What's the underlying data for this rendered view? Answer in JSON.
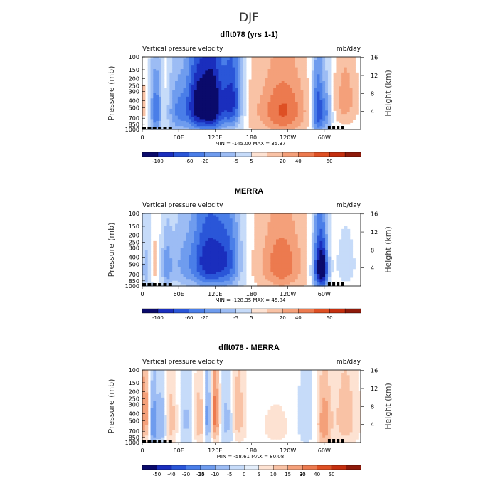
{
  "figure_title": "DJF",
  "chart_data": [
    {
      "type": "heatmap",
      "title": "dflt078 (yrs 1-1)",
      "left_label": "Vertical pressure velocity",
      "right_label": "mb/day",
      "ylabel": "Pressure (mb)",
      "y2label": "Height (km)",
      "stats": "MIN = -145.00   MAX =  35.37",
      "pressure_ticks": [
        100,
        150,
        200,
        250,
        300,
        400,
        500,
        700,
        850,
        1000
      ],
      "height_ticks": [
        4,
        8,
        12,
        16
      ],
      "lon_ticks": [
        "0",
        "60E",
        "120E",
        "180",
        "120W",
        "60W"
      ],
      "colorbar_labels": [
        "-100",
        "-60",
        "-20",
        "-5",
        "5",
        "20",
        "40",
        "60"
      ],
      "colorbar_colors": [
        "#0a0a6b",
        "#1a2ebd",
        "#2a56d8",
        "#4a7ee8",
        "#6f9cee",
        "#9cbcf4",
        "#c6dbf9",
        "#fde2d2",
        "#f9c2a5",
        "#f4a07a",
        "#ec7a4f",
        "#de5024",
        "#c42f0f",
        "#8e1a0a"
      ],
      "fields": [
        {
          "lon": 5,
          "p": 450,
          "sx": 5,
          "sy": 300,
          "a": 5
        },
        {
          "lon": 38,
          "p": 450,
          "sx": 4,
          "sy": 300,
          "a": 5
        },
        {
          "lon": 22,
          "p": 550,
          "sx": 7,
          "sy": 400,
          "a": -25
        },
        {
          "lon": 60,
          "p": 550,
          "sx": 15,
          "sy": 380,
          "a": -22
        },
        {
          "lon": 90,
          "p": 450,
          "sx": 12,
          "sy": 400,
          "a": -35
        },
        {
          "lon": 115,
          "p": 450,
          "sx": 13,
          "sy": 420,
          "a": -45
        },
        {
          "lon": 148,
          "p": 400,
          "sx": 13,
          "sy": 380,
          "a": -35
        },
        {
          "lon": 175,
          "p": 500,
          "sx": 13,
          "sy": 400,
          "a": 4
        },
        {
          "lon": 232,
          "p": 550,
          "sx": 28,
          "sy": 380,
          "a": 22
        },
        {
          "lon": 290,
          "p": 550,
          "sx": 8,
          "sy": 400,
          "a": -35
        },
        {
          "lon": 305,
          "p": 600,
          "sx": 5,
          "sy": 300,
          "a": -15
        },
        {
          "lon": 335,
          "p": 380,
          "sx": 12,
          "sy": 280,
          "a": 13
        }
      ]
    },
    {
      "type": "heatmap",
      "title": "MERRA",
      "left_label": "Vertical pressure velocity",
      "right_label": "mb/day",
      "ylabel": "Pressure (mb)",
      "y2label": "Height (km)",
      "stats": "MIN = -128.35   MAX =  45.84",
      "pressure_ticks": [
        100,
        150,
        200,
        250,
        300,
        400,
        500,
        700,
        850,
        1000
      ],
      "height_ticks": [
        4,
        8,
        12,
        16
      ],
      "lon_ticks": [
        "0",
        "60E",
        "120E",
        "180",
        "120W",
        "60W"
      ],
      "colorbar_labels": [
        "-100",
        "-60",
        "-20",
        "-5",
        "5",
        "20",
        "40",
        "60"
      ],
      "colorbar_colors": [
        "#0a0a6b",
        "#1a2ebd",
        "#2a56d8",
        "#4a7ee8",
        "#6f9cee",
        "#9cbcf4",
        "#c6dbf9",
        "#fde2d2",
        "#f9c2a5",
        "#f4a07a",
        "#ec7a4f",
        "#de5024",
        "#c42f0f",
        "#8e1a0a"
      ],
      "fields": [
        {
          "lon": 18,
          "p": 500,
          "sx": 4,
          "sy": 250,
          "a": 12
        },
        {
          "lon": 8,
          "p": 600,
          "sx": 8,
          "sy": 400,
          "a": -12
        },
        {
          "lon": 40,
          "p": 550,
          "sx": 6,
          "sy": 300,
          "a": -15
        },
        {
          "lon": 65,
          "p": 500,
          "sx": 18,
          "sy": 400,
          "a": -14
        },
        {
          "lon": 105,
          "p": 450,
          "sx": 18,
          "sy": 420,
          "a": -32
        },
        {
          "lon": 140,
          "p": 450,
          "sx": 18,
          "sy": 420,
          "a": -28
        },
        {
          "lon": 182,
          "p": 500,
          "sx": 12,
          "sy": 400,
          "a": 2
        },
        {
          "lon": 230,
          "p": 500,
          "sx": 25,
          "sy": 380,
          "a": 20
        },
        {
          "lon": 292,
          "p": 550,
          "sx": 8,
          "sy": 400,
          "a": -40
        },
        {
          "lon": 300,
          "p": 600,
          "sx": 5,
          "sy": 300,
          "a": -20
        },
        {
          "lon": 335,
          "p": 500,
          "sx": 12,
          "sy": 300,
          "a": -6
        }
      ]
    },
    {
      "type": "heatmap",
      "title": "dflt078 - MERRA",
      "left_label": "Vertical pressure velocity",
      "right_label": "mb/day",
      "ylabel": "Pressure (mb)",
      "y2label": "Height (km)",
      "stats": "MIN = -58.61   MAX =  80.08",
      "pressure_ticks": [
        100,
        150,
        200,
        250,
        300,
        400,
        500,
        700,
        850,
        1000
      ],
      "height_ticks": [
        4,
        8,
        12,
        16
      ],
      "lon_ticks": [
        "0",
        "60E",
        "120E",
        "180",
        "120W",
        "60W"
      ],
      "colorbar_labels": [
        "-50",
        "-40",
        "-30",
        "-20",
        "-15",
        "-10",
        "-5",
        "0",
        "5",
        "10",
        "15",
        "20",
        "30",
        "40",
        "50"
      ],
      "colorbar_colors": [
        "#0a0a6b",
        "#1a2ebd",
        "#2a56d8",
        "#4a7ee8",
        "#6f9cee",
        "#9cbcf4",
        "#c6dbf9",
        "#e4eefb",
        "#fde2d2",
        "#f9c2a5",
        "#f4a07a",
        "#ec7a4f",
        "#de5024",
        "#c42f0f",
        "#8e1a0a"
      ],
      "fields": [
        {
          "lon": 4,
          "p": 400,
          "sx": 5,
          "sy": 350,
          "a": 22
        },
        {
          "lon": 18,
          "p": 550,
          "sx": 5,
          "sy": 350,
          "a": -22
        },
        {
          "lon": 32,
          "p": 550,
          "sx": 5,
          "sy": 350,
          "a": -15
        },
        {
          "lon": 48,
          "p": 500,
          "sx": 6,
          "sy": 350,
          "a": 13
        },
        {
          "lon": 72,
          "p": 500,
          "sx": 8,
          "sy": 400,
          "a": -10
        },
        {
          "lon": 95,
          "p": 500,
          "sx": 6,
          "sy": 350,
          "a": 15
        },
        {
          "lon": 107,
          "p": 450,
          "sx": 5,
          "sy": 350,
          "a": -20
        },
        {
          "lon": 120,
          "p": 400,
          "sx": 5,
          "sy": 350,
          "a": 25
        },
        {
          "lon": 140,
          "p": 500,
          "sx": 7,
          "sy": 400,
          "a": -12
        },
        {
          "lon": 158,
          "p": 400,
          "sx": 8,
          "sy": 350,
          "a": 14
        },
        {
          "lon": 220,
          "p": 600,
          "sx": 25,
          "sy": 400,
          "a": 4
        },
        {
          "lon": 268,
          "p": 500,
          "sx": 10,
          "sy": 400,
          "a": -8
        },
        {
          "lon": 300,
          "p": 550,
          "sx": 8,
          "sy": 400,
          "a": 20
        },
        {
          "lon": 335,
          "p": 450,
          "sx": 14,
          "sy": 380,
          "a": 14
        }
      ]
    }
  ]
}
